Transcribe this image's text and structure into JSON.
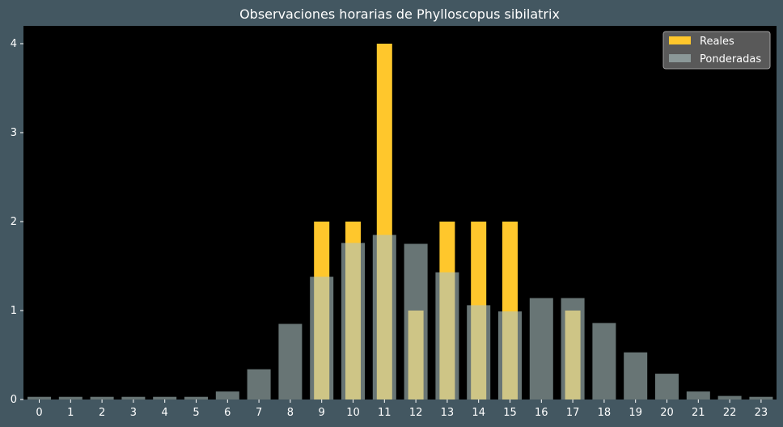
{
  "chart_data": {
    "type": "bar",
    "title": "Observaciones horarias de Phylloscopus sibilatrix",
    "xlabel": "",
    "ylabel": "",
    "categories": [
      "0",
      "1",
      "2",
      "3",
      "4",
      "5",
      "6",
      "7",
      "8",
      "9",
      "10",
      "11",
      "12",
      "13",
      "14",
      "15",
      "16",
      "17",
      "18",
      "19",
      "20",
      "21",
      "22",
      "23"
    ],
    "ylim": [
      0,
      4.2
    ],
    "yticks": [
      0,
      1,
      2,
      3,
      4
    ],
    "grid": false,
    "legend_position": "top-right",
    "series": [
      {
        "name": "Reales",
        "color": "#ffc72c",
        "values": [
          0,
          0,
          0,
          0,
          0,
          0,
          0,
          0,
          0,
          2,
          2,
          4,
          1,
          2,
          2,
          2,
          0,
          1,
          0,
          0,
          0,
          0,
          0,
          0
        ]
      },
      {
        "name": "Ponderadas",
        "color": "#aec3c3",
        "opacity": 0.6,
        "values": [
          0.03,
          0.03,
          0.03,
          0.03,
          0.03,
          0.03,
          0.09,
          0.34,
          0.85,
          1.38,
          1.76,
          1.85,
          1.75,
          1.43,
          1.06,
          0.99,
          1.14,
          1.14,
          0.86,
          0.53,
          0.29,
          0.09,
          0.04,
          0.03
        ]
      }
    ]
  },
  "colors": {
    "page_background": "#435761",
    "plot_background": "#000000",
    "text": "#ffffff",
    "legend_background": "#595959"
  }
}
